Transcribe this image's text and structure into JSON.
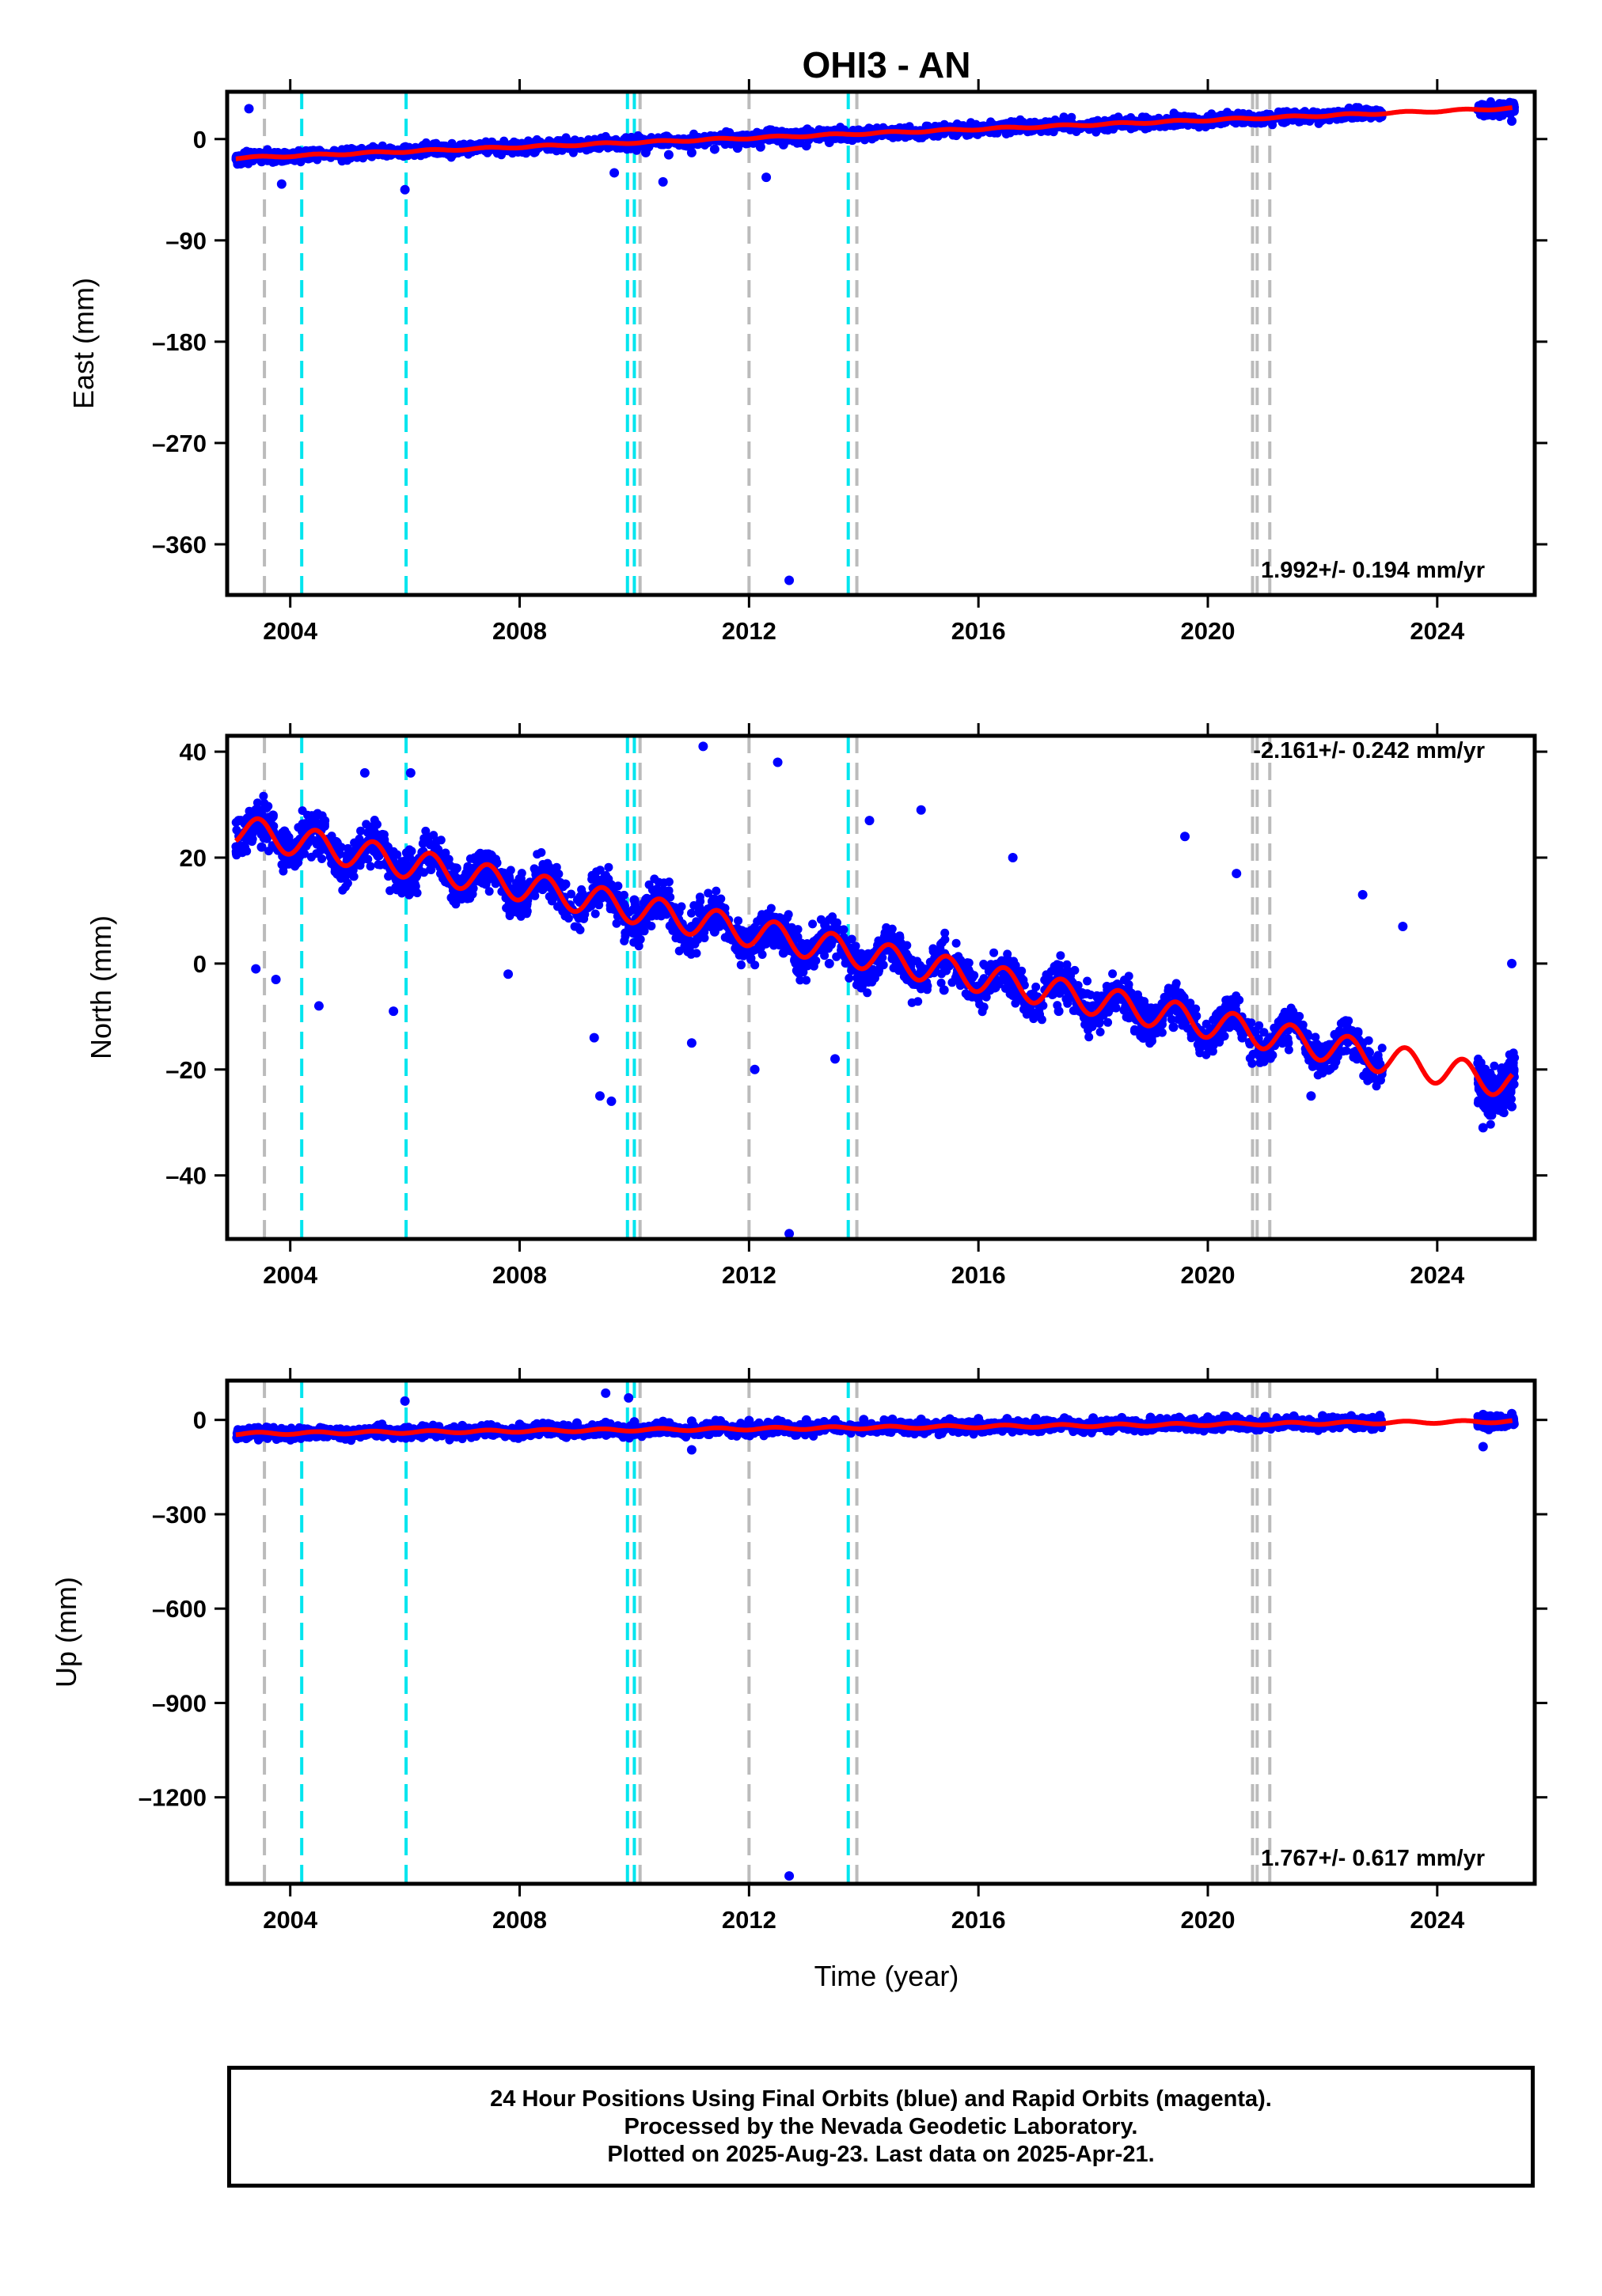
{
  "chart_data": {
    "title": "OHI3 - AN",
    "xlabel": "Time (year)",
    "type": "scatter",
    "xlim": [
      2002.9,
      2025.7
    ],
    "x_ticks": [
      2004,
      2008,
      2012,
      2016,
      2020,
      2024
    ],
    "event_lines": {
      "gray": [
        2003.55,
        2010.1,
        2012.0,
        2013.88,
        2020.78,
        2020.86,
        2021.08
      ],
      "cyan": [
        2004.2,
        2006.02,
        2009.88,
        2010.0,
        2013.73
      ]
    },
    "colors": {
      "final_orbits": "#0000ff",
      "model_fit": "#ff0000",
      "gray_lines": "#bbbbbb",
      "cyan_lines": "#00e5ee"
    },
    "panels": [
      {
        "name": "east",
        "ylabel": "East (mm)",
        "ylim": [
          -405,
          42
        ],
        "y_ticks": [
          0,
          -90,
          -180,
          -270,
          -360
        ],
        "y_tick_labels": [
          "0",
          "–90",
          "–180",
          "–270",
          "–360"
        ],
        "rate_label": "1.992+/- 0.194 mm/yr",
        "trend": {
          "rate": 1.992,
          "y2003": -17,
          "annual_amp": 0.8
        },
        "scatter": 3.5,
        "outliers": [
          [
            2003.28,
            27
          ],
          [
            2003.85,
            -40
          ],
          [
            2006.0,
            -45
          ],
          [
            2009.65,
            -30
          ],
          [
            2010.5,
            -38
          ],
          [
            2012.3,
            -34
          ],
          [
            2012.7,
            -392
          ],
          [
            2025.3,
            16
          ]
        ],
        "points": [
          [
            2003.1,
            -18
          ],
          [
            2003.3,
            -14
          ],
          [
            2003.5,
            -20
          ],
          [
            2003.7,
            -15
          ],
          [
            2003.9,
            -12
          ],
          [
            2004.2,
            -16
          ],
          [
            2004.5,
            -13
          ],
          [
            2004.8,
            -14
          ],
          [
            2005.1,
            -10
          ],
          [
            2005.4,
            -12
          ],
          [
            2005.7,
            -11
          ],
          [
            2006.0,
            -10
          ],
          [
            2006.4,
            -12
          ],
          [
            2006.8,
            -9
          ],
          [
            2007.2,
            -8
          ],
          [
            2007.6,
            -6
          ],
          [
            2008.0,
            -8
          ],
          [
            2008.4,
            -6
          ],
          [
            2008.8,
            -7
          ],
          [
            2009.2,
            -6
          ],
          [
            2009.6,
            -3
          ],
          [
            2009.9,
            -2
          ],
          [
            2010.2,
            -12
          ],
          [
            2010.6,
            -14
          ],
          [
            2011.0,
            -12
          ],
          [
            2011.4,
            -9
          ],
          [
            2011.8,
            -8
          ],
          [
            2012.2,
            -7
          ],
          [
            2012.6,
            -5
          ],
          [
            2013.0,
            -6
          ],
          [
            2013.4,
            -3
          ],
          [
            2013.8,
            -1
          ],
          [
            2014.2,
            2
          ],
          [
            2014.6,
            2
          ],
          [
            2015.0,
            4
          ],
          [
            2015.4,
            5
          ],
          [
            2015.8,
            6
          ],
          [
            2016.2,
            6
          ],
          [
            2016.6,
            8
          ],
          [
            2017.0,
            9
          ],
          [
            2017.4,
            11
          ],
          [
            2017.8,
            11
          ],
          [
            2018.2,
            13
          ],
          [
            2018.6,
            13
          ],
          [
            2019.0,
            14
          ],
          [
            2019.4,
            15
          ],
          [
            2019.8,
            16
          ],
          [
            2020.2,
            17
          ],
          [
            2020.6,
            18
          ],
          [
            2021.0,
            19
          ],
          [
            2021.4,
            21
          ],
          [
            2021.8,
            22
          ],
          [
            2022.2,
            24
          ],
          [
            2022.6,
            25
          ],
          [
            2023.0,
            25
          ],
          [
            2024.8,
            29
          ],
          [
            2025.3,
            31
          ]
        ]
      },
      {
        "name": "north",
        "ylabel": "North (mm)",
        "ylim": [
          -52,
          43
        ],
        "y_ticks": [
          40,
          20,
          0,
          -20,
          -40
        ],
        "y_tick_labels": [
          "40",
          "20",
          "0",
          "–20",
          "–40"
        ],
        "rate_label": "-2.161+/- 0.242 mm/yr",
        "trend": {
          "rate": -2.161,
          "y2003": 25.5,
          "annual_amp": 2.8
        },
        "scatter": 2.8,
        "outliers": [
          [
            2003.4,
            -1
          ],
          [
            2003.75,
            -3
          ],
          [
            2004.5,
            -8
          ],
          [
            2005.3,
            36
          ],
          [
            2005.8,
            -9
          ],
          [
            2006.1,
            36
          ],
          [
            2007.8,
            -2
          ],
          [
            2009.3,
            -14
          ],
          [
            2009.4,
            -25
          ],
          [
            2009.6,
            -26
          ],
          [
            2011.2,
            41
          ],
          [
            2011.0,
            -15
          ],
          [
            2012.1,
            -20
          ],
          [
            2012.5,
            38
          ],
          [
            2012.7,
            -51
          ],
          [
            2013.5,
            -18
          ],
          [
            2014.1,
            27
          ],
          [
            2015.0,
            29
          ],
          [
            2016.6,
            20
          ],
          [
            2019.6,
            24
          ],
          [
            2020.5,
            17
          ],
          [
            2021.8,
            -25
          ],
          [
            2022.7,
            13
          ],
          [
            2023.4,
            7
          ],
          [
            2024.8,
            -31
          ],
          [
            2025.3,
            0
          ]
        ],
        "points": [
          [
            2003.1,
            27
          ],
          [
            2003.3,
            24
          ],
          [
            2003.5,
            22
          ],
          [
            2003.7,
            28
          ],
          [
            2003.9,
            25
          ],
          [
            2004.2,
            21
          ],
          [
            2004.5,
            25
          ],
          [
            2004.8,
            23
          ],
          [
            2005.1,
            20
          ],
          [
            2005.4,
            23
          ],
          [
            2005.7,
            22
          ],
          [
            2006.0,
            19
          ],
          [
            2006.3,
            21
          ],
          [
            2006.6,
            19
          ],
          [
            2006.9,
            18
          ],
          [
            2007.2,
            16
          ],
          [
            2007.6,
            19
          ],
          [
            2008.0,
            16
          ],
          [
            2008.4,
            14
          ],
          [
            2008.8,
            15
          ],
          [
            2009.2,
            12
          ],
          [
            2009.6,
            11
          ],
          [
            2010.0,
            12
          ],
          [
            2010.3,
            9
          ],
          [
            2010.7,
            10
          ],
          [
            2011.0,
            7
          ],
          [
            2011.4,
            6
          ],
          [
            2011.8,
            4
          ],
          [
            2012.2,
            3
          ],
          [
            2012.6,
            2
          ],
          [
            2013.0,
            1
          ],
          [
            2013.4,
            0
          ],
          [
            2013.8,
            -1
          ],
          [
            2014.2,
            -2
          ],
          [
            2014.6,
            -1
          ],
          [
            2015.0,
            -3
          ],
          [
            2015.4,
            -5
          ],
          [
            2015.8,
            -4
          ],
          [
            2016.2,
            -5
          ],
          [
            2016.6,
            -6
          ],
          [
            2017.0,
            -7
          ],
          [
            2017.4,
            -9
          ],
          [
            2017.8,
            -8
          ],
          [
            2018.2,
            -9
          ],
          [
            2018.6,
            -10
          ],
          [
            2019.0,
            -11
          ],
          [
            2019.4,
            -12
          ],
          [
            2019.8,
            -12
          ],
          [
            2020.2,
            -13
          ],
          [
            2020.6,
            -14
          ],
          [
            2021.0,
            -16
          ],
          [
            2021.4,
            -15
          ],
          [
            2021.8,
            -17
          ],
          [
            2022.2,
            -18
          ],
          [
            2022.6,
            -18
          ],
          [
            2023.0,
            -19
          ],
          [
            2024.8,
            -23
          ],
          [
            2025.1,
            -25
          ],
          [
            2025.3,
            -27
          ]
        ]
      },
      {
        "name": "up",
        "ylabel": "Up (mm)",
        "ylim": [
          -1475,
          125
        ],
        "y_ticks": [
          0,
          -300,
          -600,
          -900,
          -1200
        ],
        "y_tick_labels": [
          "0",
          "–300",
          "–600",
          "–900",
          "–1200"
        ],
        "rate_label": "1.767+/- 0.617 mm/yr",
        "trend": {
          "rate": 1.767,
          "y2003": -44,
          "annual_amp": 4
        },
        "scatter": 13,
        "outliers": [
          [
            2006.0,
            60
          ],
          [
            2009.5,
            85
          ],
          [
            2009.9,
            70
          ],
          [
            2011.0,
            -95
          ],
          [
            2012.7,
            -1450
          ],
          [
            2024.8,
            -85
          ]
        ],
        "points": [
          [
            2003.1,
            -45
          ],
          [
            2003.4,
            -40
          ],
          [
            2003.7,
            -38
          ],
          [
            2004.0,
            -42
          ],
          [
            2004.4,
            -35
          ],
          [
            2004.8,
            -36
          ],
          [
            2005.2,
            -30
          ],
          [
            2005.6,
            -28
          ],
          [
            2006.0,
            -25
          ],
          [
            2006.5,
            -22
          ],
          [
            2007.0,
            -18
          ],
          [
            2007.5,
            -16
          ],
          [
            2008.0,
            -14
          ],
          [
            2008.5,
            -12
          ],
          [
            2009.0,
            -10
          ],
          [
            2009.5,
            -8
          ],
          [
            2010.0,
            -6
          ],
          [
            2010.5,
            -5
          ],
          [
            2011.0,
            -4
          ],
          [
            2011.5,
            -3
          ],
          [
            2012.0,
            -2
          ],
          [
            2012.5,
            -1
          ],
          [
            2013.0,
            0
          ],
          [
            2013.5,
            0
          ],
          [
            2014.0,
            1
          ],
          [
            2014.5,
            2
          ],
          [
            2015.0,
            2
          ],
          [
            2015.5,
            3
          ],
          [
            2016.0,
            4
          ],
          [
            2016.5,
            4
          ],
          [
            2017.0,
            5
          ],
          [
            2017.5,
            6
          ],
          [
            2018.0,
            6
          ],
          [
            2018.5,
            7
          ],
          [
            2019.0,
            8
          ],
          [
            2019.5,
            8
          ],
          [
            2020.0,
            9
          ],
          [
            2020.5,
            10
          ],
          [
            2021.0,
            11
          ],
          [
            2021.5,
            12
          ],
          [
            2022.0,
            13
          ],
          [
            2022.5,
            13
          ],
          [
            2023.0,
            14
          ],
          [
            2024.8,
            17
          ],
          [
            2025.3,
            20
          ]
        ]
      }
    ]
  },
  "footer": {
    "line1": "24 Hour Positions Using Final Orbits (blue) and Rapid Orbits (magenta).",
    "line2": "Processed by the Nevada Geodetic Laboratory.",
    "line3": "Plotted on 2025-Aug-23. Last data on 2025-Apr-21."
  }
}
